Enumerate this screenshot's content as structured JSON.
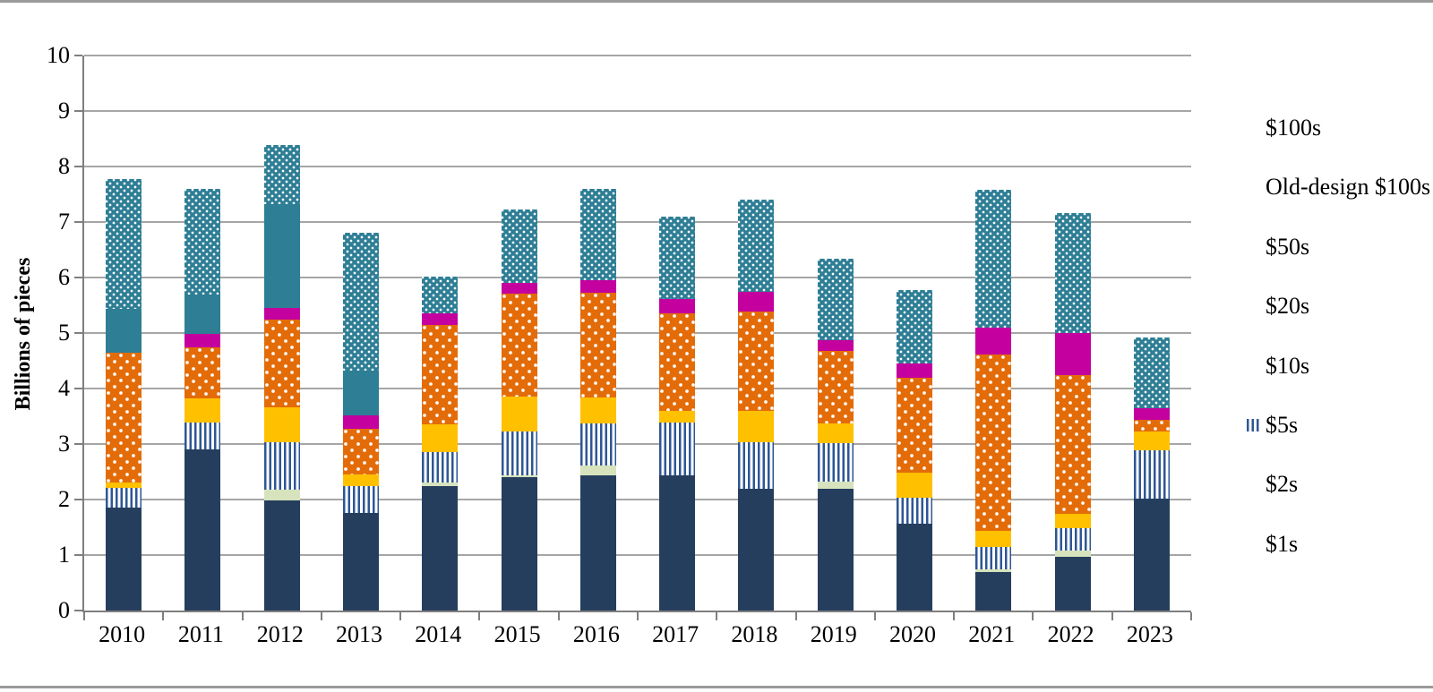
{
  "chart_data": {
    "type": "stacked-bar",
    "title": "",
    "ylabel": "Billions of pieces",
    "xlabel": "",
    "ylim": [
      0,
      10
    ],
    "y_ticks": [
      0,
      1,
      2,
      3,
      4,
      5,
      6,
      7,
      8,
      9,
      10
    ],
    "grid": "horizontal",
    "legend_position": "right",
    "categories": [
      "2010",
      "2011",
      "2012",
      "2013",
      "2014",
      "2015",
      "2016",
      "2017",
      "2018",
      "2019",
      "2020",
      "2021",
      "2022",
      "2023"
    ],
    "series": [
      {
        "name": "$1s",
        "color": "#253e5e",
        "pattern": "solid",
        "values": [
          1.86,
          2.91,
          1.98,
          1.76,
          2.25,
          2.4,
          2.43,
          2.44,
          2.2,
          2.19,
          1.57,
          0.69,
          0.96,
          2.01
        ]
      },
      {
        "name": "$2s",
        "color": "#d6e3bc",
        "pattern": "solid",
        "values": [
          0,
          0,
          0.2,
          0,
          0.05,
          0.03,
          0.18,
          0,
          0,
          0.13,
          0,
          0.05,
          0.12,
          0
        ]
      },
      {
        "name": "$5s",
        "color": "#2e5694",
        "pattern": "vertical-stripes",
        "values": [
          0.35,
          0.47,
          0.86,
          0.49,
          0.55,
          0.79,
          0.76,
          0.94,
          0.84,
          0.7,
          0.47,
          0.41,
          0.41,
          0.88
        ]
      },
      {
        "name": "$10s",
        "color": "#ffc000",
        "pattern": "solid",
        "values": [
          0.1,
          0.45,
          0.62,
          0.2,
          0.5,
          0.63,
          0.47,
          0.22,
          0.55,
          0.35,
          0.44,
          0.28,
          0.26,
          0.34
        ]
      },
      {
        "name": "$20s",
        "color": "#e36c09",
        "pattern": "white-dots-coarse",
        "values": [
          2.33,
          0.92,
          1.59,
          0.82,
          1.79,
          1.86,
          1.89,
          1.75,
          1.79,
          1.31,
          1.72,
          3.18,
          2.49,
          0.21
        ]
      },
      {
        "name": "$50s",
        "color": "#c4009e",
        "pattern": "solid",
        "values": [
          0,
          0.23,
          0.2,
          0.24,
          0.22,
          0.19,
          0.22,
          0.27,
          0.37,
          0.19,
          0.26,
          0.49,
          0.76,
          0.2
        ]
      },
      {
        "name": "Old-design $100s",
        "color": "#2e7e95",
        "pattern": "solid",
        "values": [
          0.8,
          0.72,
          1.87,
          0.82,
          0,
          0,
          0,
          0,
          0,
          0,
          0,
          0,
          0,
          0
        ]
      },
      {
        "name": "$100s",
        "color": "#2e7e95",
        "pattern": "white-dots-fine",
        "values": [
          2.34,
          1.9,
          1.07,
          2.48,
          0.65,
          1.33,
          1.64,
          1.47,
          1.66,
          1.47,
          1.31,
          2.48,
          2.16,
          1.28
        ]
      }
    ],
    "totals": [
      7.78,
      7.6,
      8.39,
      6.81,
      6.01,
      7.23,
      7.59,
      7.09,
      7.41,
      6.34,
      5.77,
      7.58,
      7.16,
      4.92
    ]
  },
  "colors": {
    "gridline": "#a6a6a6",
    "axis": "#7f7f7f",
    "page_border": "#9a9a9a",
    "background": "#ffffff"
  }
}
